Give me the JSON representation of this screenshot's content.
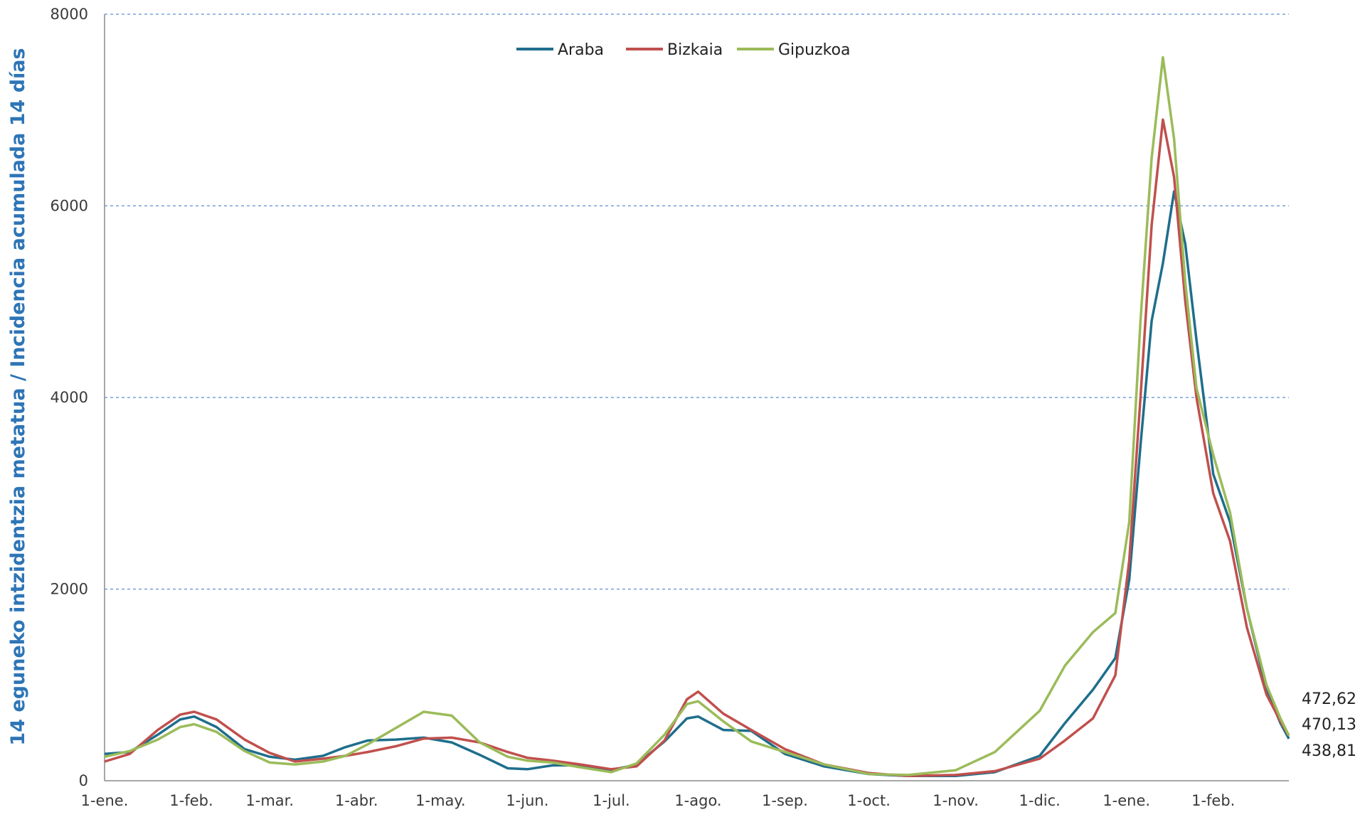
{
  "chart_data": {
    "type": "line",
    "title": "",
    "xlabel": "",
    "ylabel": "14 eguneko intzidentzia metatua / Incidencia acumulada 14 días",
    "ylim": [
      0,
      8000
    ],
    "yticks": [
      "0",
      "2000",
      "4000",
      "6000",
      "8000"
    ],
    "x_tick_labels": [
      "1-ene.",
      "1-feb.",
      "1-mar.",
      "1-abr.",
      "1-may.",
      "1-jun.",
      "1-jul.",
      "1-ago.",
      "1-sep.",
      "1-oct.",
      "1-nov.",
      "1-dic.",
      "1-ene.",
      "1-feb."
    ],
    "x_unit": "date (2021-01-01 to 2022-02-28)",
    "grid": "horizontal dashed",
    "legend_position": "top-center",
    "end_labels": [
      "472,62",
      "470,13",
      "438,81"
    ],
    "series": [
      {
        "name": "Araba",
        "color": "#1f6e8c",
        "points": [
          [
            "2021-01-01",
            280
          ],
          [
            "2021-01-10",
            300
          ],
          [
            "2021-01-20",
            480
          ],
          [
            "2021-01-28",
            640
          ],
          [
            "2021-02-02",
            670
          ],
          [
            "2021-02-10",
            560
          ],
          [
            "2021-02-20",
            330
          ],
          [
            "2021-03-01",
            250
          ],
          [
            "2021-03-10",
            220
          ],
          [
            "2021-03-20",
            260
          ],
          [
            "2021-03-28",
            350
          ],
          [
            "2021-04-05",
            420
          ],
          [
            "2021-04-15",
            430
          ],
          [
            "2021-04-25",
            450
          ],
          [
            "2021-05-05",
            400
          ],
          [
            "2021-05-15",
            270
          ],
          [
            "2021-05-25",
            130
          ],
          [
            "2021-06-01",
            120
          ],
          [
            "2021-06-10",
            160
          ],
          [
            "2021-06-20",
            160
          ],
          [
            "2021-07-01",
            110
          ],
          [
            "2021-07-10",
            170
          ],
          [
            "2021-07-20",
            410
          ],
          [
            "2021-07-28",
            650
          ],
          [
            "2021-08-01",
            670
          ],
          [
            "2021-08-10",
            530
          ],
          [
            "2021-08-20",
            520
          ],
          [
            "2021-09-01",
            280
          ],
          [
            "2021-09-15",
            150
          ],
          [
            "2021-10-01",
            70
          ],
          [
            "2021-10-15",
            50
          ],
          [
            "2021-11-01",
            50
          ],
          [
            "2021-11-15",
            90
          ],
          [
            "2021-12-01",
            260
          ],
          [
            "2021-12-10",
            600
          ],
          [
            "2021-12-20",
            950
          ],
          [
            "2021-12-28",
            1280
          ],
          [
            "2022-01-02",
            2100
          ],
          [
            "2022-01-06",
            3500
          ],
          [
            "2022-01-10",
            4800
          ],
          [
            "2022-01-14",
            5400
          ],
          [
            "2022-01-18",
            6150
          ],
          [
            "2022-01-22",
            5600
          ],
          [
            "2022-01-26",
            4600
          ],
          [
            "2022-02-01",
            3200
          ],
          [
            "2022-02-07",
            2700
          ],
          [
            "2022-02-13",
            1800
          ],
          [
            "2022-02-20",
            950
          ],
          [
            "2022-02-25",
            600
          ],
          [
            "2022-02-28",
            438.81
          ]
        ]
      },
      {
        "name": "Bizkaia",
        "color": "#c0504d",
        "points": [
          [
            "2021-01-01",
            200
          ],
          [
            "2021-01-10",
            280
          ],
          [
            "2021-01-20",
            530
          ],
          [
            "2021-01-28",
            690
          ],
          [
            "2021-02-02",
            720
          ],
          [
            "2021-02-10",
            640
          ],
          [
            "2021-02-20",
            430
          ],
          [
            "2021-03-01",
            290
          ],
          [
            "2021-03-10",
            200
          ],
          [
            "2021-03-20",
            230
          ],
          [
            "2021-03-28",
            260
          ],
          [
            "2021-04-05",
            300
          ],
          [
            "2021-04-15",
            360
          ],
          [
            "2021-04-25",
            440
          ],
          [
            "2021-05-05",
            450
          ],
          [
            "2021-05-15",
            400
          ],
          [
            "2021-05-25",
            300
          ],
          [
            "2021-06-01",
            240
          ],
          [
            "2021-06-10",
            210
          ],
          [
            "2021-06-20",
            170
          ],
          [
            "2021-07-01",
            120
          ],
          [
            "2021-07-10",
            150
          ],
          [
            "2021-07-20",
            420
          ],
          [
            "2021-07-28",
            850
          ],
          [
            "2021-08-01",
            930
          ],
          [
            "2021-08-10",
            700
          ],
          [
            "2021-08-20",
            530
          ],
          [
            "2021-09-01",
            330
          ],
          [
            "2021-09-15",
            170
          ],
          [
            "2021-10-01",
            80
          ],
          [
            "2021-10-15",
            50
          ],
          [
            "2021-11-01",
            60
          ],
          [
            "2021-11-15",
            100
          ],
          [
            "2021-12-01",
            230
          ],
          [
            "2021-12-10",
            420
          ],
          [
            "2021-12-20",
            650
          ],
          [
            "2021-12-28",
            1100
          ],
          [
            "2022-01-02",
            2300
          ],
          [
            "2022-01-06",
            4000
          ],
          [
            "2022-01-10",
            5800
          ],
          [
            "2022-01-14",
            6900
          ],
          [
            "2022-01-18",
            6300
          ],
          [
            "2022-01-22",
            5000
          ],
          [
            "2022-01-26",
            4000
          ],
          [
            "2022-02-01",
            3000
          ],
          [
            "2022-02-07",
            2500
          ],
          [
            "2022-02-13",
            1600
          ],
          [
            "2022-02-20",
            900
          ],
          [
            "2022-02-25",
            620
          ],
          [
            "2022-02-28",
            470.13
          ]
        ]
      },
      {
        "name": "Gipuzkoa",
        "color": "#9bbb59",
        "points": [
          [
            "2021-01-01",
            250
          ],
          [
            "2021-01-10",
            310
          ],
          [
            "2021-01-20",
            430
          ],
          [
            "2021-01-28",
            560
          ],
          [
            "2021-02-02",
            590
          ],
          [
            "2021-02-10",
            510
          ],
          [
            "2021-02-20",
            310
          ],
          [
            "2021-03-01",
            190
          ],
          [
            "2021-03-10",
            170
          ],
          [
            "2021-03-20",
            200
          ],
          [
            "2021-03-28",
            260
          ],
          [
            "2021-04-05",
            380
          ],
          [
            "2021-04-15",
            550
          ],
          [
            "2021-04-25",
            720
          ],
          [
            "2021-05-05",
            680
          ],
          [
            "2021-05-15",
            400
          ],
          [
            "2021-05-25",
            250
          ],
          [
            "2021-06-01",
            210
          ],
          [
            "2021-06-10",
            190
          ],
          [
            "2021-06-20",
            140
          ],
          [
            "2021-07-01",
            90
          ],
          [
            "2021-07-10",
            180
          ],
          [
            "2021-07-20",
            480
          ],
          [
            "2021-07-28",
            800
          ],
          [
            "2021-08-01",
            830
          ],
          [
            "2021-08-10",
            620
          ],
          [
            "2021-08-20",
            410
          ],
          [
            "2021-09-01",
            300
          ],
          [
            "2021-09-15",
            170
          ],
          [
            "2021-10-01",
            70
          ],
          [
            "2021-10-15",
            60
          ],
          [
            "2021-11-01",
            110
          ],
          [
            "2021-11-15",
            300
          ],
          [
            "2021-12-01",
            730
          ],
          [
            "2021-12-10",
            1200
          ],
          [
            "2021-12-20",
            1550
          ],
          [
            "2021-12-28",
            1750
          ],
          [
            "2022-01-02",
            2700
          ],
          [
            "2022-01-06",
            4800
          ],
          [
            "2022-01-10",
            6500
          ],
          [
            "2022-01-14",
            7550
          ],
          [
            "2022-01-18",
            6700
          ],
          [
            "2022-01-22",
            5200
          ],
          [
            "2022-01-26",
            4100
          ],
          [
            "2022-02-01",
            3400
          ],
          [
            "2022-02-07",
            2800
          ],
          [
            "2022-02-13",
            1800
          ],
          [
            "2022-02-20",
            1000
          ],
          [
            "2022-02-25",
            650
          ],
          [
            "2022-02-28",
            472.62
          ]
        ]
      }
    ]
  }
}
